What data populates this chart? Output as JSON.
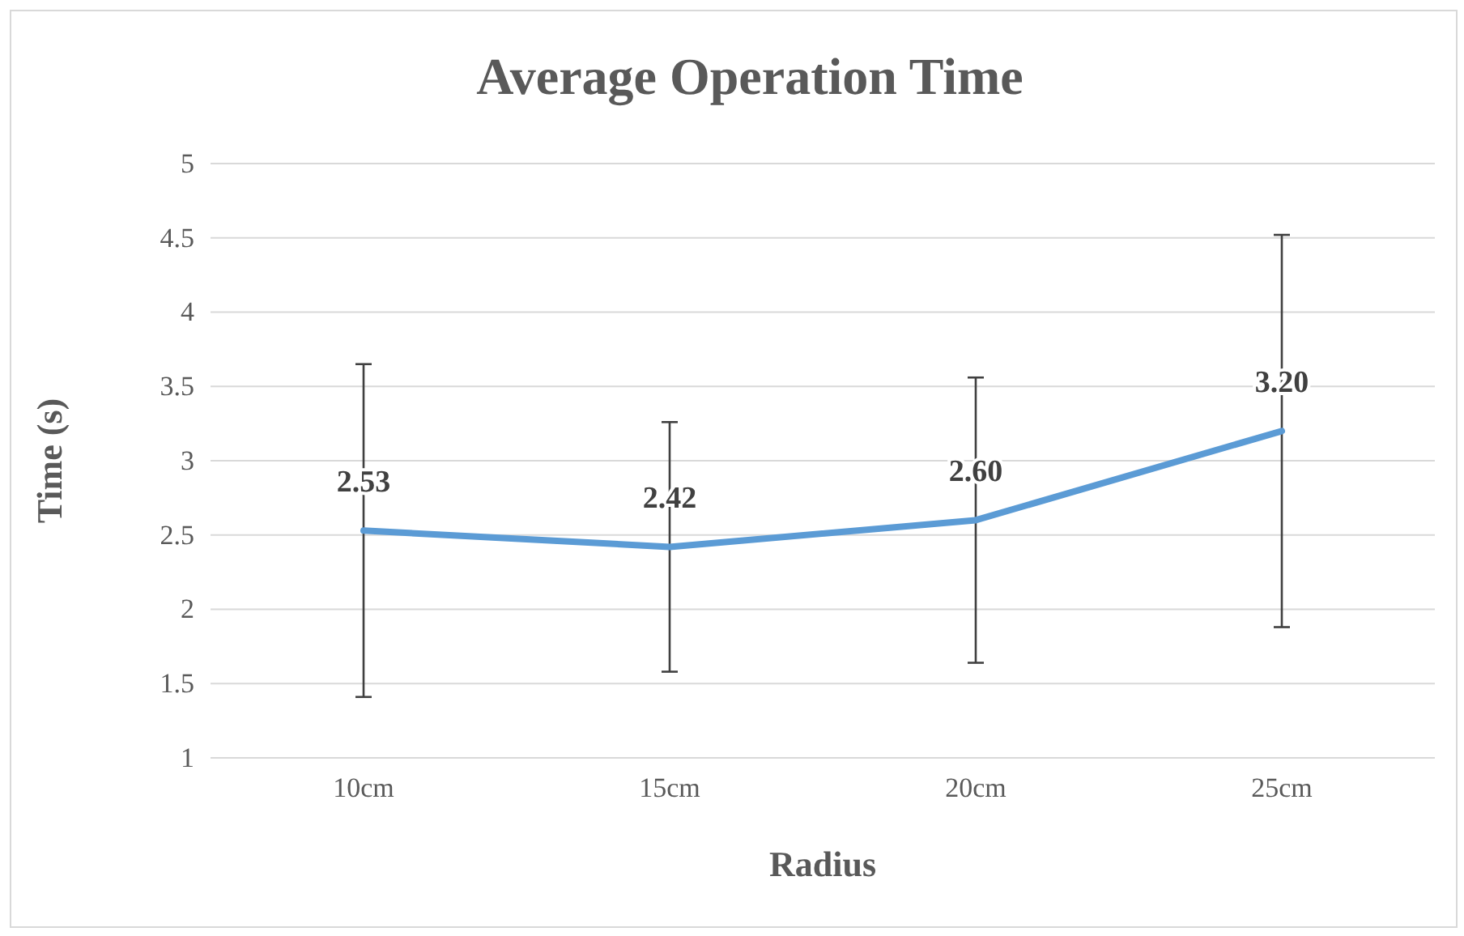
{
  "chart_data": {
    "type": "line",
    "title": "Average Operation Time",
    "xlabel": "Radius",
    "ylabel": "Time (s)",
    "categories": [
      "10cm",
      "15cm",
      "20cm",
      "25cm"
    ],
    "series": [
      {
        "color": "#5b9bd5",
        "values": [
          2.53,
          2.42,
          2.6,
          3.2
        ],
        "errors": [
          1.12,
          0.84,
          0.96,
          1.32
        ],
        "value_labels": [
          "2.53",
          "2.42",
          "2.60",
          "3.20"
        ]
      }
    ],
    "ylim": [
      1,
      5
    ],
    "yticks": [
      1,
      1.5,
      2,
      2.5,
      3,
      3.5,
      4,
      4.5,
      5
    ],
    "grid": "y",
    "marker": "none",
    "line_style": "solid"
  }
}
